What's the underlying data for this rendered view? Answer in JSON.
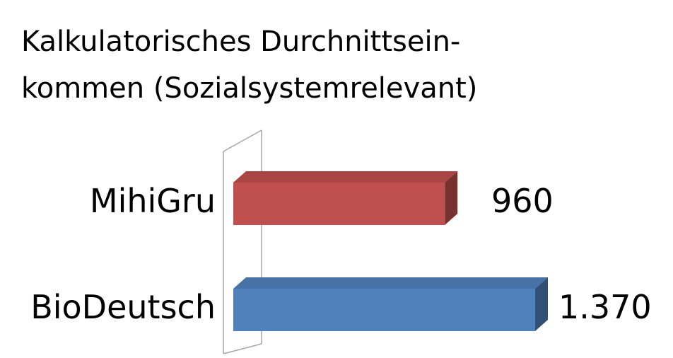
{
  "chart_data": {
    "type": "bar",
    "orientation": "horizontal",
    "style": "3d",
    "title_lines": [
      "Kalkulatorisches Durchnittsein-",
      "kommen (Sozialsystemrelevant)"
    ],
    "categories": [
      "MihiGru",
      "BioDeutsch"
    ],
    "values": [
      960,
      1370
    ],
    "value_labels": [
      "960",
      "1.370"
    ],
    "colors": [
      "#c0504d",
      "#4f81bd"
    ],
    "xlim": [
      0,
      1370
    ],
    "grid": false,
    "legend": "none"
  }
}
